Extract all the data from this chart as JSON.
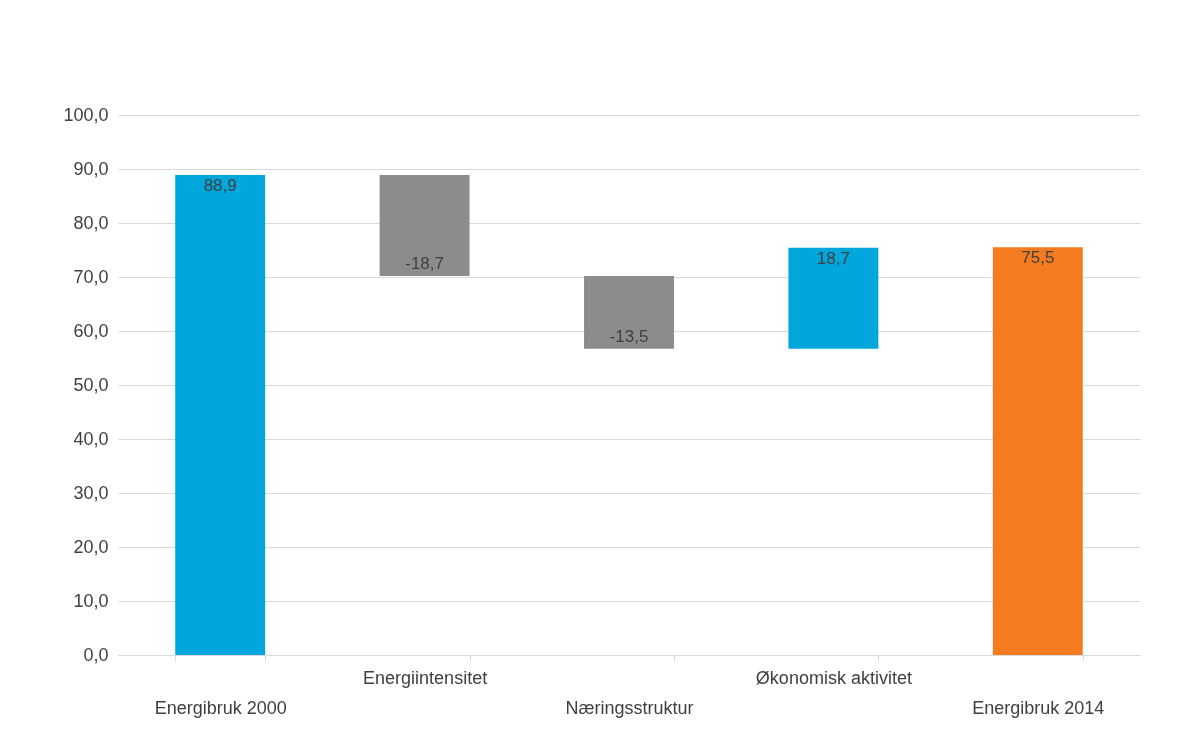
{
  "chart_data": {
    "type": "bar",
    "categories": [
      "Energibruk 2000",
      "Energiintensitet",
      "Næringsstruktur",
      "Økonomisk aktivitet",
      "Energibruk 2014"
    ],
    "values": [
      88.9,
      -18.7,
      -13.5,
      18.7,
      75.5
    ],
    "base": [
      0,
      88.9,
      70.2,
      56.7,
      0
    ],
    "colors": [
      "#00a6dc",
      "#8c8c8c",
      "#8c8c8c",
      "#00a6dc",
      "#f47b20"
    ],
    "value_labels": [
      "88,9",
      "-18,7",
      "-13,5",
      "18,7",
      "75,5"
    ],
    "ylim": [
      0,
      100
    ],
    "yticks": [
      {
        "value": 0,
        "label": "0,0"
      },
      {
        "value": 10,
        "label": "10,0"
      },
      {
        "value": 20,
        "label": "20,0"
      },
      {
        "value": 30,
        "label": "30,0"
      },
      {
        "value": 40,
        "label": "40,0"
      },
      {
        "value": 50,
        "label": "50,0"
      },
      {
        "value": 60,
        "label": "60,0"
      },
      {
        "value": 70,
        "label": "70,0"
      },
      {
        "value": 80,
        "label": "80,0"
      },
      {
        "value": 90,
        "label": "90,0"
      },
      {
        "value": 100,
        "label": "100,0"
      }
    ],
    "grid": true
  }
}
